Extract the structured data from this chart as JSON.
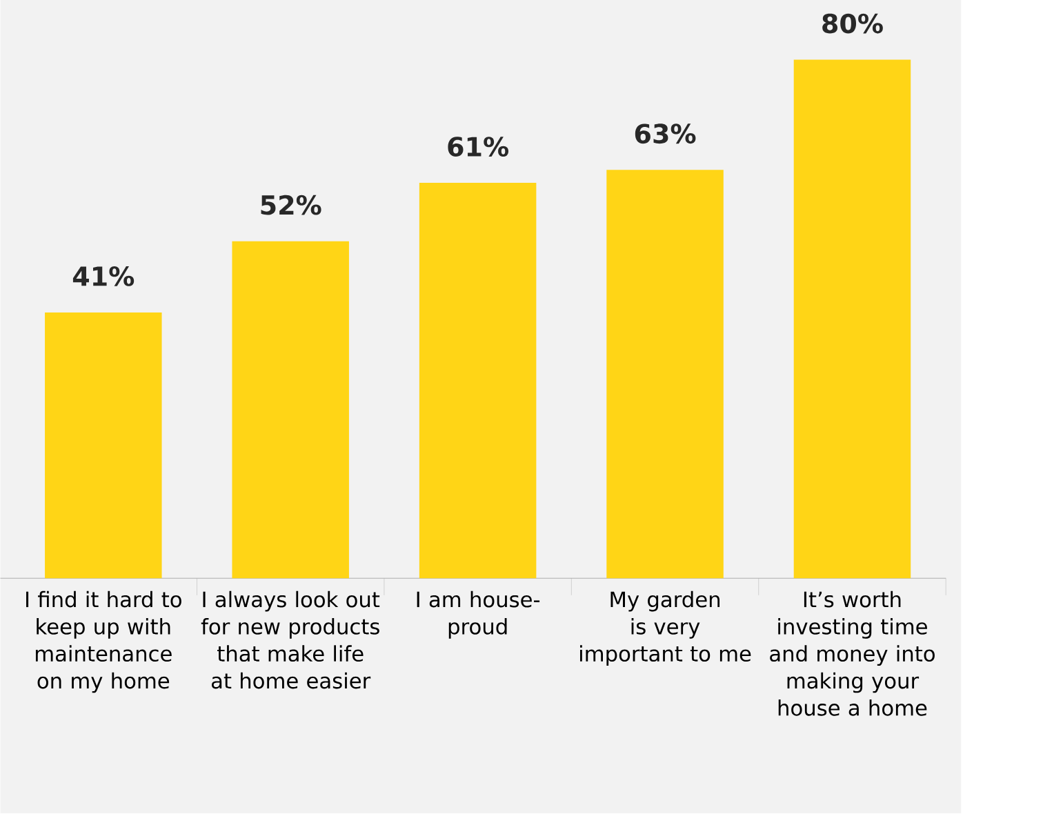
{
  "chart_data": {
    "type": "bar",
    "categories": [
      "I find it hard to keep up with maintenance on my home",
      "I always look out for new products that make life at home easier",
      "I am house-proud",
      "My garden is very important to me",
      "It’s worth investing time and money into making your house a home"
    ],
    "values": [
      41,
      52,
      61,
      63,
      80
    ],
    "value_labels": [
      "41%",
      "52%",
      "61%",
      "63%",
      "80%"
    ],
    "color": "#ffd516"
  }
}
